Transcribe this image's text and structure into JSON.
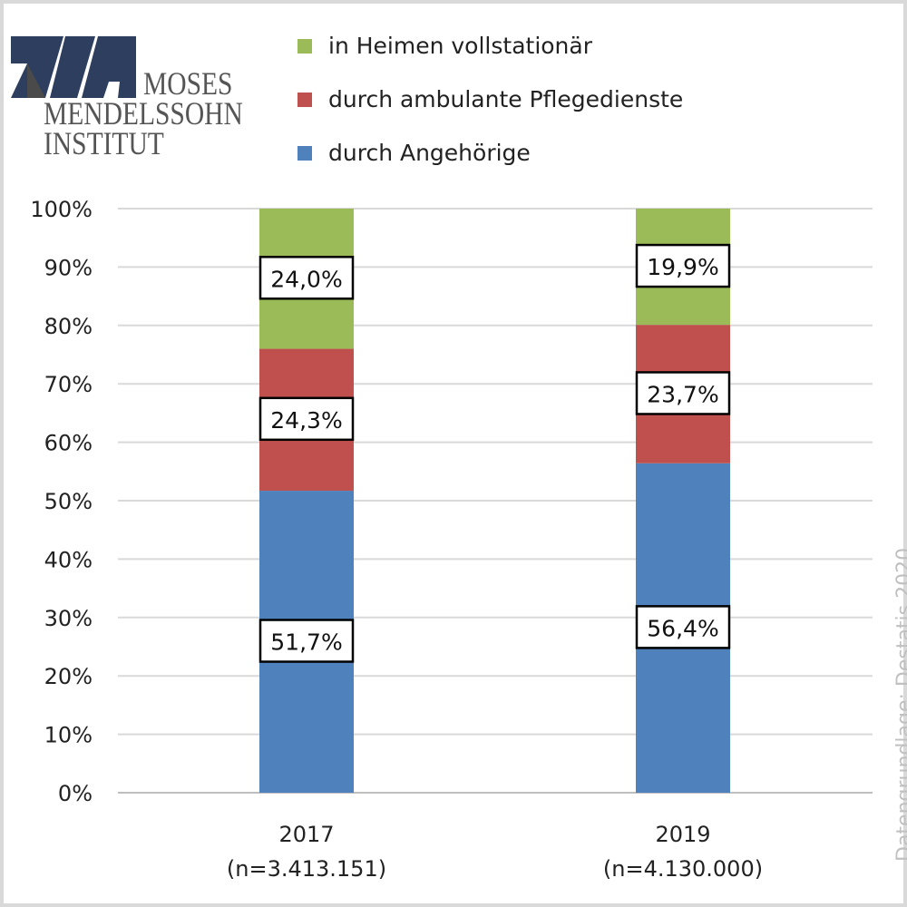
{
  "logo": {
    "text_lines": [
      "MOSES",
      "MENDELSSOHN",
      "INSTITUT"
    ],
    "colors": {
      "navy": "#2d3e5e",
      "grey": "#4a4a4a"
    }
  },
  "source_note": "Datengrundlage: Destatis 2020",
  "chart_data": {
    "type": "bar",
    "stacked": true,
    "categories": [
      "2017\n(n=3.413.151)",
      "2019\n(n=4.130.000)"
    ],
    "category_lines": [
      [
        "2017",
        "(n=3.413.151)"
      ],
      [
        "2019",
        "(n=4.130.000)"
      ]
    ],
    "series": [
      {
        "name": "durch Angehörige",
        "values": [
          51.7,
          56.4
        ],
        "labels": [
          "51,7%",
          "56,4%"
        ],
        "color": "#4f81bd"
      },
      {
        "name": "durch ambulante Pflegedienste",
        "values": [
          24.3,
          23.7
        ],
        "labels": [
          "24,3%",
          "23,7%"
        ],
        "color": "#c0504d"
      },
      {
        "name": "in Heimen vollstationär",
        "values": [
          24.0,
          19.9
        ],
        "labels": [
          "24,0%",
          "19,9%"
        ],
        "color": "#9bbb59"
      }
    ],
    "legend_order": [
      "in Heimen vollstationär",
      "durch ambulante Pflegedienste",
      "durch Angehörige"
    ],
    "legend_placement": "top",
    "ylim": [
      0,
      100
    ],
    "yticks": [
      "0%",
      "10%",
      "20%",
      "30%",
      "40%",
      "50%",
      "60%",
      "70%",
      "80%",
      "90%",
      "100%"
    ],
    "grid": true,
    "title": "",
    "xlabel": "",
    "ylabel": ""
  }
}
